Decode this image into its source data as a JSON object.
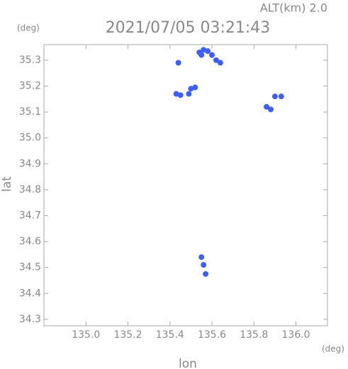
{
  "chart_data": {
    "type": "scatter",
    "title": "2021/07/05 03:21:43",
    "subtitle": "ALT(km) 2.0",
    "y_unit": "(deg)",
    "x_unit": "(deg)",
    "xlabel": "lon",
    "ylabel": "lat",
    "color": "#3f5ff0",
    "x": [
      135.44,
      135.54,
      135.56,
      135.58,
      135.6,
      135.62,
      135.64,
      135.55,
      135.5,
      135.52,
      135.49,
      135.45,
      135.43,
      135.9,
      135.93,
      135.86,
      135.88,
      135.55,
      135.56,
      135.57
    ],
    "y": [
      35.29,
      35.33,
      35.34,
      35.335,
      35.32,
      35.3,
      35.29,
      35.32,
      35.19,
      35.195,
      35.17,
      35.165,
      35.17,
      35.16,
      35.16,
      35.12,
      35.11,
      34.54,
      34.51,
      34.475
    ],
    "xlim": [
      134.8,
      136.15
    ],
    "ylim": [
      34.275,
      35.36
    ],
    "xticks": [
      {
        "value": 135.0,
        "label": "135.0"
      },
      {
        "value": 135.2,
        "label": "135.2"
      },
      {
        "value": 135.4,
        "label": "135.4"
      },
      {
        "value": 135.6,
        "label": "135.6"
      },
      {
        "value": 135.8,
        "label": "135.8"
      },
      {
        "value": 136.0,
        "label": "136.0"
      }
    ],
    "yticks": [
      34.3,
      34.4,
      34.5,
      34.6,
      34.7,
      34.8,
      34.9,
      {
        "value": 35.0,
        "label": "35.0"
      },
      35.1,
      35.2,
      35.3
    ]
  }
}
